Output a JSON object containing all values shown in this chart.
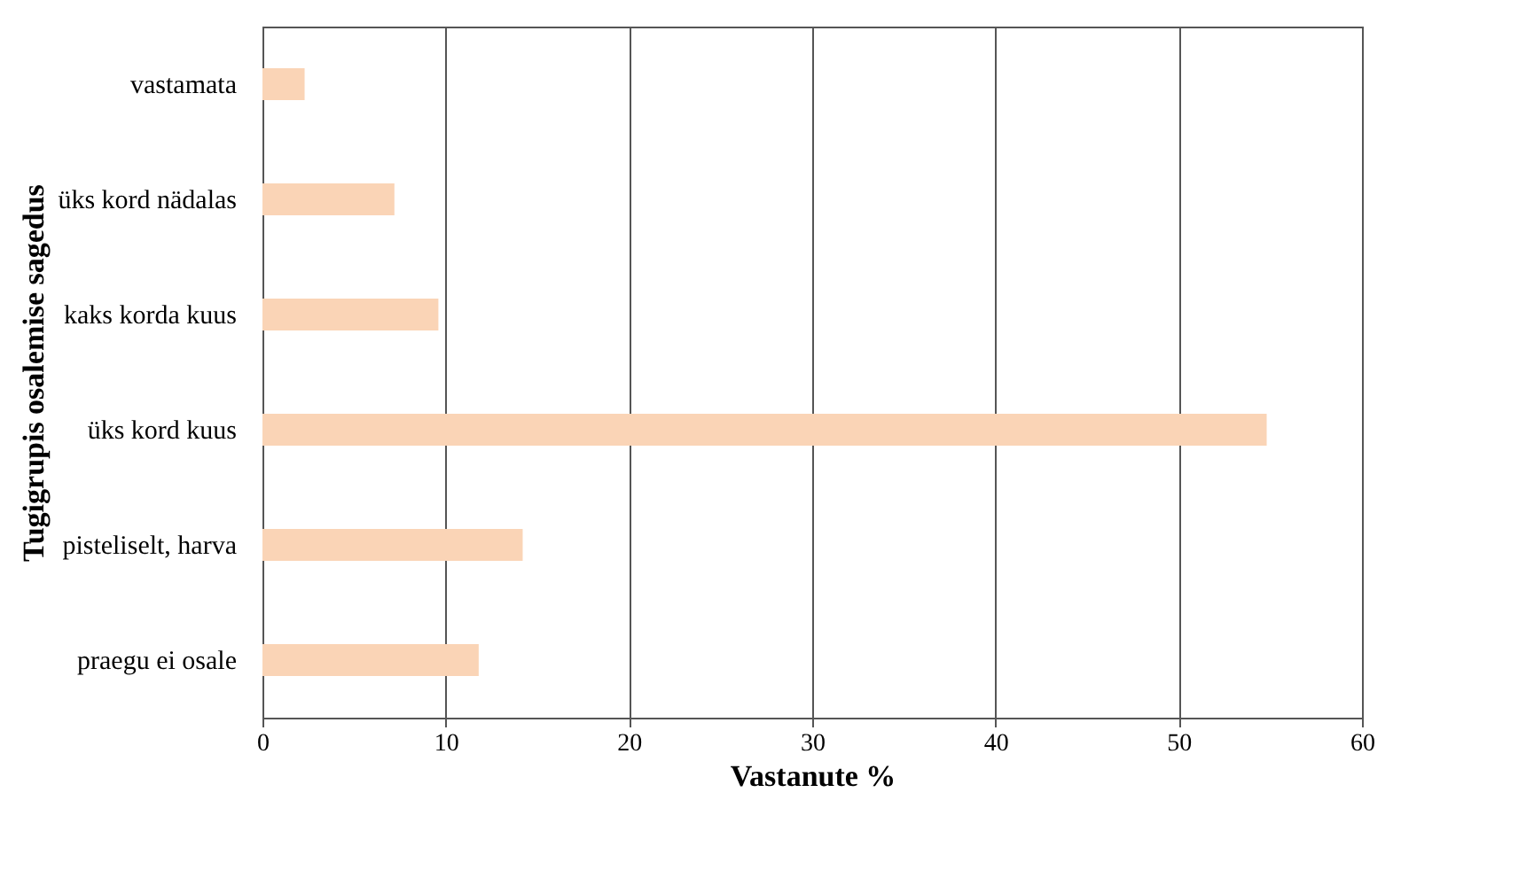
{
  "chart_data": {
    "type": "bar",
    "orientation": "horizontal",
    "xlabel": "Vastanute %",
    "ylabel": "Tugigrupis osalemise sagedus",
    "categories": [
      "vastamata",
      "üks kord nädalas",
      "kaks korda kuus",
      "üks kord kuus",
      "pisteliselt, harva",
      "praegu ei osale"
    ],
    "values": [
      2.3,
      7.2,
      9.6,
      54.8,
      14.2,
      11.8
    ],
    "color": "#fad4b6",
    "xlim": [
      0,
      60
    ],
    "xticks": [
      0,
      10,
      20,
      30,
      40,
      50,
      60
    ],
    "grid": "x"
  }
}
